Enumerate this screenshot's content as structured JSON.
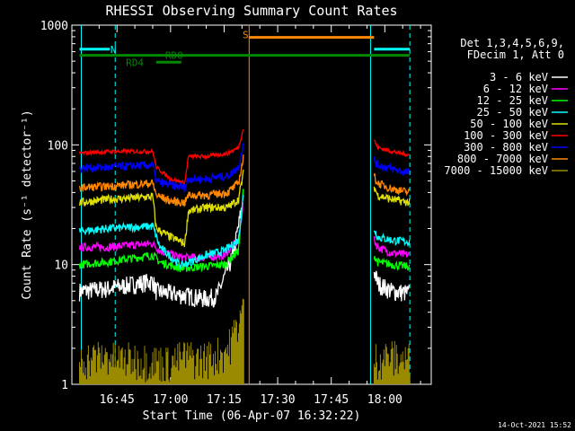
{
  "chart_data": {
    "type": "line",
    "title": "RHESSI Observing Summary Count Rates",
    "xlabel": "Start Time (06-Apr-07 16:32:22)",
    "ylabel": "Count Rate (s⁻¹ detector⁻¹)",
    "yscale": "log",
    "ylim": [
      1,
      1000
    ],
    "xlim": [
      "16:32:22",
      "18:13:00"
    ],
    "x_tick_labels": [
      "16:45",
      "17:00",
      "17:15",
      "17:30",
      "17:45",
      "18:00"
    ],
    "x_ticks_min": [
      765,
      780,
      795,
      810,
      825,
      840
    ],
    "y_tick_labels": [
      "1",
      "10",
      "100",
      "1000"
    ],
    "y_ticks": [
      1,
      10,
      100,
      1000
    ],
    "grid": false,
    "legend": {
      "placement": "right",
      "header": [
        "Det 1,3,4,5,6,9,",
        "FDecim 1, Att 0"
      ],
      "entries": [
        {
          "label": "3 - 6 keV",
          "color": "#ffffff"
        },
        {
          "label": "6 - 12 keV",
          "color": "#ff00ff"
        },
        {
          "label": "12 - 25 keV",
          "color": "#00ff00"
        },
        {
          "label": "25 - 50 keV",
          "color": "#00ffff"
        },
        {
          "label": "50 - 100 keV",
          "color": "#e0e000"
        },
        {
          "label": "100 - 300 keV",
          "color": "#ff0000"
        },
        {
          "label": "300 - 800 keV",
          "color": "#0000ff"
        },
        {
          "label": "800 - 7000 keV",
          "color": "#ff8800"
        },
        {
          "label": "7000 - 15000 keV",
          "color": "#9a8a00"
        }
      ]
    },
    "series": [
      {
        "name": "3 - 6 keV",
        "color": "#ffffff",
        "segments": [
          {
            "x": [
              754.5,
              762,
              775,
              776,
              783,
              790,
              793,
              797.5,
              800
            ],
            "y": [
              6,
              6.3,
              7.3,
              6,
              5.6,
              5.2,
              5.5,
              12,
              30
            ]
          },
          {
            "x": [
              837,
              838,
              842,
              847
            ],
            "y": [
              9,
              7,
              6,
              5.8
            ]
          }
        ]
      },
      {
        "name": "6 - 12 keV",
        "color": "#ff00ff",
        "segments": [
          {
            "x": [
              754.5,
              762,
              775,
              777,
              783,
              790,
              795,
              799,
              800.5
            ],
            "y": [
              14,
              14,
              15,
              13,
              11.5,
              11.5,
              12,
              16,
              35
            ]
          },
          {
            "x": [
              837,
              838,
              842,
              847
            ],
            "y": [
              16,
              14,
              12.5,
              12
            ]
          }
        ]
      },
      {
        "name": "12 - 25 keV",
        "color": "#00ff00",
        "segments": [
          {
            "x": [
              754.5,
              762,
              775,
              777,
              783,
              790,
              795,
              799,
              800.5
            ],
            "y": [
              10,
              10.5,
              12,
              10.5,
              9.3,
              9.7,
              10,
              13,
              45
            ]
          },
          {
            "x": [
              837,
              838,
              842,
              847
            ],
            "y": [
              12,
              10.5,
              10,
              9.6
            ]
          }
        ]
      },
      {
        "name": "25 - 50 keV",
        "color": "#00ffff",
        "segments": [
          {
            "x": [
              754.5,
              762,
              775,
              777,
              783,
              790,
              795,
              799,
              800.5
            ],
            "y": [
              19,
              20,
              21,
              14,
              9.8,
              12,
              13,
              16,
              40
            ]
          },
          {
            "x": [
              837,
              838,
              842,
              847
            ],
            "y": [
              20,
              17,
              16,
              15.5
            ]
          }
        ]
      },
      {
        "name": "50 - 100 keV",
        "color": "#e0e000",
        "segments": [
          {
            "x": [
              754.5,
              762,
              775,
              776,
              780,
              784,
              785,
              790,
              796,
              799,
              800.5
            ],
            "y": [
              33,
              35,
              37,
              20,
              17,
              15,
              28,
              30,
              30,
              35,
              60
            ]
          },
          {
            "x": [
              837,
              838,
              842,
              847
            ],
            "y": [
              45,
              38,
              35,
              33
            ]
          }
        ]
      },
      {
        "name": "100 - 300 keV",
        "color": "#ff0000",
        "segments": [
          {
            "x": [
              754.5,
              762,
              775,
              776,
              780,
              784,
              785,
              790,
              796,
              799,
              800.5
            ],
            "y": [
              85,
              88,
              88,
              65,
              52,
              48,
              80,
              80,
              85,
              95,
              140
            ]
          },
          {
            "x": [
              837,
              838,
              842,
              847
            ],
            "y": [
              110,
              95,
              88,
              82
            ]
          }
        ]
      },
      {
        "name": "300 - 800 keV",
        "color": "#0000ff",
        "segments": [
          {
            "x": [
              754.5,
              762,
              775,
              776,
              780,
              784,
              785,
              790,
              796,
              799,
              800.5
            ],
            "y": [
              64,
              65,
              68,
              50,
              46,
              44,
              52,
              52,
              55,
              65,
              105
            ]
          },
          {
            "x": [
              837,
              838,
              842,
              847
            ],
            "y": [
              75,
              68,
              63,
              58
            ]
          }
        ]
      },
      {
        "name": "800 - 7000 keV",
        "color": "#ff8800",
        "segments": [
          {
            "x": [
              754.5,
              762,
              775,
              776,
              780,
              784,
              785,
              790,
              796,
              799,
              800.5
            ],
            "y": [
              44,
              45,
              48,
              38,
              34,
              33,
              38,
              38,
              40,
              48,
              80
            ]
          },
          {
            "x": [
              837,
              838,
              842,
              847
            ],
            "y": [
              55,
              48,
              43,
              40
            ]
          }
        ]
      },
      {
        "name": "7000 - 15000 keV",
        "color": "#9a8a00",
        "segments": [
          {
            "x": [
              754.5,
              763,
              764,
              772,
              780,
              784,
              788,
              792,
              796,
              800.5
            ],
            "y": [
              1.5,
              1.6,
              1.5,
              1.5,
              1.4,
              1.6,
              1.5,
              1.6,
              1.8,
              4
            ]
          },
          {
            "x": [
              837,
              841,
              845,
              847
            ],
            "y": [
              1.5,
              1.6,
              1.5,
              1.5
            ]
          }
        ]
      }
    ],
    "flags": [
      {
        "label": "N",
        "color": "#00ffff",
        "level": 630,
        "label_x": 764,
        "segments": [
          [
            754.5,
            763
          ],
          [
            837,
            847
          ]
        ]
      },
      {
        "label": "RD0",
        "color": "#008800",
        "level": 560,
        "label_x": 781,
        "segments": [
          [
            754.5,
            847
          ]
        ]
      },
      {
        "label": "RD4",
        "color": "#008800",
        "level": 490,
        "label_x": 770,
        "segments": [
          [
            776,
            783
          ]
        ]
      },
      {
        "label": "S",
        "color": "#ff8800",
        "level": 790,
        "label_x": 801,
        "segments": [
          [
            802,
            837
          ]
        ]
      }
    ],
    "vlines_dashed": [
      {
        "x": 764.5,
        "color": "#00ffff"
      },
      {
        "x": 847,
        "color": "#00ffff"
      }
    ],
    "vlines_solid": [
      {
        "x": 755,
        "color": "#00ffff"
      },
      {
        "x": 802,
        "color": "#ff8800"
      },
      {
        "x": 836,
        "color": "#00ffff"
      }
    ]
  },
  "timestamp": "14-Oct-2021 15:52"
}
